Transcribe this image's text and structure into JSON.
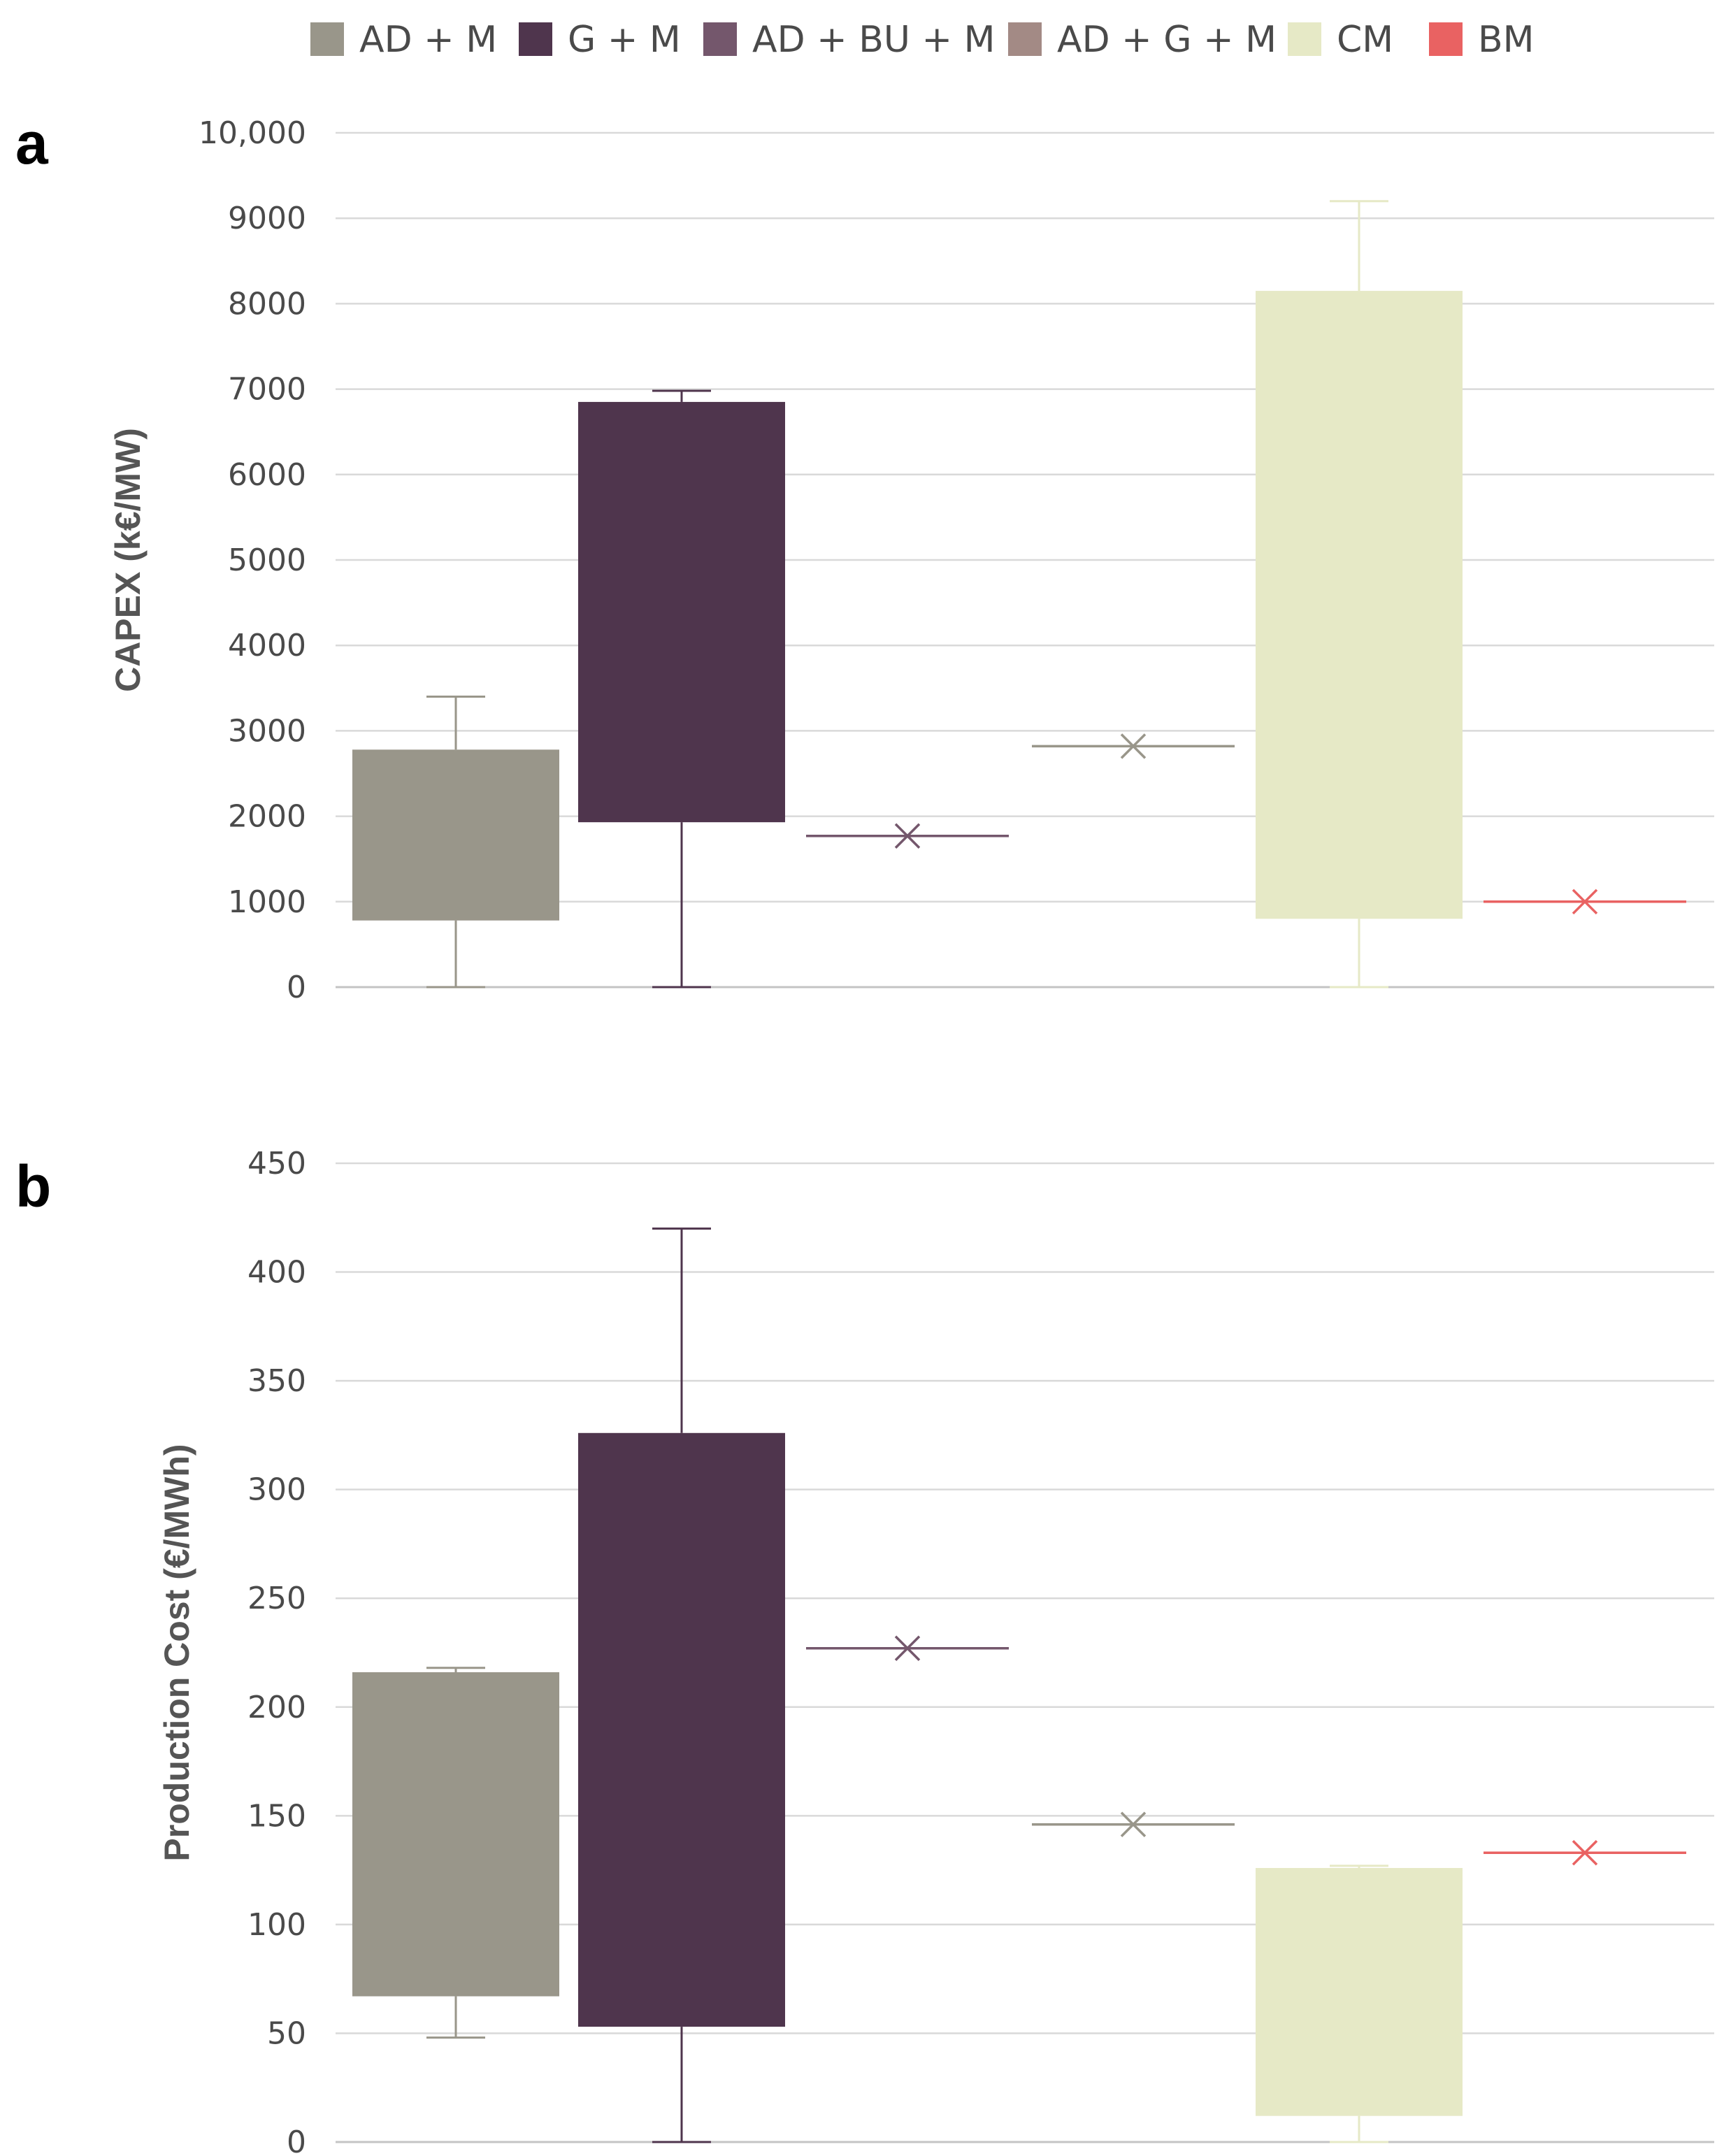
{
  "legend": [
    {
      "label": "AD + M",
      "color": "#99968A"
    },
    {
      "label": "G + M",
      "color": "#4F354D"
    },
    {
      "label": "AD + BU + M",
      "color": "#74576C"
    },
    {
      "label": "AD + G + M",
      "color": "#A38A85"
    },
    {
      "label": "CM",
      "color": "#E6E9C6"
    },
    {
      "label": "BM",
      "color": "#E96262"
    }
  ],
  "chart_data": [
    {
      "type": "box",
      "panel_label": "a",
      "ylabel": "CAPEX (k€/MW)",
      "ylim": [
        0,
        10000
      ],
      "ytick_values": [
        0,
        1000,
        2000,
        3000,
        4000,
        5000,
        6000,
        7000,
        8000,
        9000,
        10000
      ],
      "ytick_labels": [
        "0",
        "1000",
        "2000",
        "3000",
        "4000",
        "5000",
        "6000",
        "7000",
        "8000",
        "9000",
        "10,000"
      ],
      "gridlines": true,
      "series": [
        {
          "name": "AD + M",
          "kind": "box",
          "min": 0,
          "q1": 780,
          "q3": 2780,
          "max": 3400,
          "whisker_color": "#99968A"
        },
        {
          "name": "G + M",
          "kind": "box",
          "min": 0,
          "q1": 1930,
          "q3": 6850,
          "max": 6980,
          "whisker_color": "#4F354D"
        },
        {
          "name": "AD + BU + M",
          "kind": "point",
          "value": 1770,
          "line_color": "#74576C",
          "marker_color": "#74576C"
        },
        {
          "name": "AD + G + M",
          "kind": "point",
          "value": 2820,
          "line_color": "#99968A",
          "marker_color": "#99968A"
        },
        {
          "name": "CM",
          "kind": "box",
          "min": 0,
          "q1": 800,
          "q3": 8150,
          "max": 9200,
          "whisker_color": "#E6E9C6"
        },
        {
          "name": "BM",
          "kind": "point",
          "value": 1000,
          "line_color": "#E96262",
          "marker_color": "#E96262"
        }
      ]
    },
    {
      "type": "box",
      "panel_label": "b",
      "ylabel": "Production Cost (€/MWh)",
      "ylim": [
        0,
        450
      ],
      "ytick_values": [
        0,
        50,
        100,
        150,
        200,
        250,
        300,
        350,
        400,
        450
      ],
      "ytick_labels": [
        "0",
        "50",
        "100",
        "150",
        "200",
        "250",
        "300",
        "350",
        "400",
        "450"
      ],
      "gridlines": true,
      "series": [
        {
          "name": "AD + M",
          "kind": "box",
          "min": 48,
          "q1": 67,
          "q3": 216,
          "max": 218,
          "whisker_color": "#99968A"
        },
        {
          "name": "G + M",
          "kind": "box",
          "min": 0,
          "q1": 53,
          "q3": 326,
          "max": 420,
          "whisker_color": "#4F354D"
        },
        {
          "name": "AD + BU + M",
          "kind": "point",
          "value": 227,
          "line_color": "#74576C",
          "marker_color": "#74576C"
        },
        {
          "name": "AD + G + M",
          "kind": "point",
          "value": 146,
          "line_color": "#99968A",
          "marker_color": "#99968A"
        },
        {
          "name": "CM",
          "kind": "box",
          "min": 0,
          "q1": 12,
          "q3": 126,
          "max": 127,
          "whisker_color": "#E6E9C6"
        },
        {
          "name": "BM",
          "kind": "point",
          "value": 133,
          "line_color": "#E96262",
          "marker_color": "#E96262"
        }
      ]
    }
  ]
}
